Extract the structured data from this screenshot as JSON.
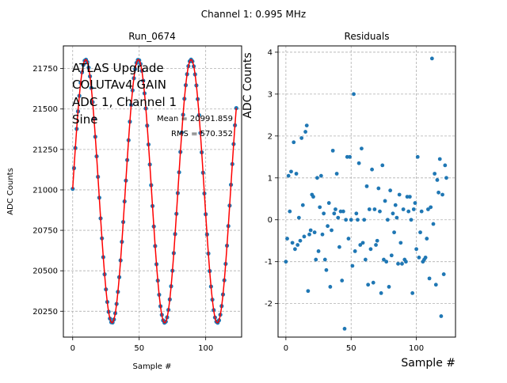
{
  "figure": {
    "suptitle": "Channel 1: 0.995 MHz"
  },
  "chart_data": [
    {
      "type": "scatter",
      "title": "Run_0674",
      "xlabel": "Sample #",
      "ylabel": "ADC Counts",
      "xlim": [
        -7,
        127
      ],
      "ylim": [
        20090,
        21890
      ],
      "xticks": [
        0,
        50,
        100
      ],
      "yticks": [
        20250,
        20500,
        20750,
        21000,
        21250,
        21500,
        21750
      ],
      "grid": true,
      "annotation_lines": [
        "ATLAS Upgrade",
        "COLUTAv4 GAIN",
        "ADC 1, Channel 1",
        "Sine"
      ],
      "stats_lines": [
        "Mean = 20991.859",
        "RMS = 570.352"
      ],
      "fit": {
        "offset": 20991.859,
        "amplitude": 813,
        "period": 39.6,
        "phase_deg": 1,
        "color": "#ff0000"
      },
      "points": {
        "color": "#1f77b4",
        "x_start": 0,
        "x_end": 123,
        "fit_dist": 0.0
      },
      "n_points": 124
    },
    {
      "type": "scatter",
      "title": "Residuals",
      "xlabel": "Sample #",
      "ylabel": "ADC Counts",
      "xlim": [
        -6,
        130
      ],
      "ylim": [
        -2.8,
        4.15
      ],
      "xticks": [
        0,
        50,
        100
      ],
      "yticks": [
        -2,
        -1,
        0,
        1,
        2,
        3,
        4
      ],
      "grid": true,
      "color": "#1f77b4",
      "x": [
        0,
        1,
        2,
        3,
        4,
        5,
        6,
        7,
        8,
        9,
        10,
        11,
        12,
        13,
        14,
        15,
        16,
        17,
        18,
        19,
        20,
        21,
        22,
        23,
        24,
        25,
        26,
        27,
        28,
        29,
        30,
        31,
        32,
        33,
        34,
        35,
        36,
        37,
        38,
        39,
        40,
        41,
        42,
        43,
        44,
        45,
        46,
        47,
        48,
        49,
        50,
        51,
        52,
        53,
        54,
        55,
        56,
        57,
        58,
        59,
        60,
        61,
        62,
        63,
        64,
        65,
        66,
        67,
        68,
        69,
        70,
        71,
        72,
        73,
        74,
        75,
        76,
        77,
        78,
        79,
        80,
        81,
        82,
        83,
        84,
        85,
        86,
        87,
        88,
        89,
        90,
        91,
        92,
        93,
        94,
        95,
        96,
        97,
        98,
        99,
        100,
        101,
        102,
        103,
        104,
        105,
        106,
        107,
        108,
        109,
        110,
        111,
        112,
        113,
        114,
        115,
        116,
        117,
        118,
        119,
        120,
        121,
        122,
        123
      ],
      "y": [
        -1.0,
        -0.45,
        1.05,
        0.2,
        1.15,
        -0.55,
        1.85,
        -0.7,
        1.1,
        -0.6,
        0.05,
        -0.5,
        1.95,
        0.35,
        -0.4,
        2.1,
        2.25,
        -1.7,
        -0.35,
        -0.25,
        0.6,
        0.55,
        -0.3,
        -0.95,
        1.0,
        -0.75,
        0.3,
        1.05,
        -0.35,
        0.15,
        -0.95,
        -1.2,
        -0.15,
        0.4,
        -1.6,
        -0.25,
        1.65,
        0.15,
        0.25,
        1.1,
        0.05,
        -0.65,
        0.2,
        -1.45,
        0.2,
        -2.6,
        0.0,
        1.5,
        -0.45,
        1.5,
        0.0,
        -1.1,
        3.0,
        -0.75,
        0.15,
        0.0,
        1.35,
        -0.6,
        1.7,
        -0.55,
        0.0,
        -0.95,
        0.8,
        -1.55,
        0.25,
        -0.7,
        1.2,
        -1.5,
        0.25,
        -0.6,
        -0.5,
        0.75,
        0.2,
        -1.75,
        1.3,
        -0.95,
        0.45,
        -1.0,
        0.0,
        -1.6,
        0.7,
        -0.85,
        0.15,
        -0.3,
        0.35,
        0.05,
        -1.05,
        0.6,
        -0.55,
        -1.05,
        0.25,
        -0.95,
        -1.0,
        0.55,
        0.2,
        0.55,
        0.0,
        -1.75,
        0.25,
        0.4,
        -0.7,
        1.5,
        -0.9,
        -0.3,
        0.2,
        -1.0,
        -0.95,
        -0.9,
        -0.45,
        0.25,
        -1.4,
        0.3,
        3.85,
        -0.1,
        1.1,
        -1.55,
        0.95,
        0.65,
        1.45,
        -2.3,
        0.6,
        -1.3,
        1.3,
        1.0
      ]
    }
  ]
}
